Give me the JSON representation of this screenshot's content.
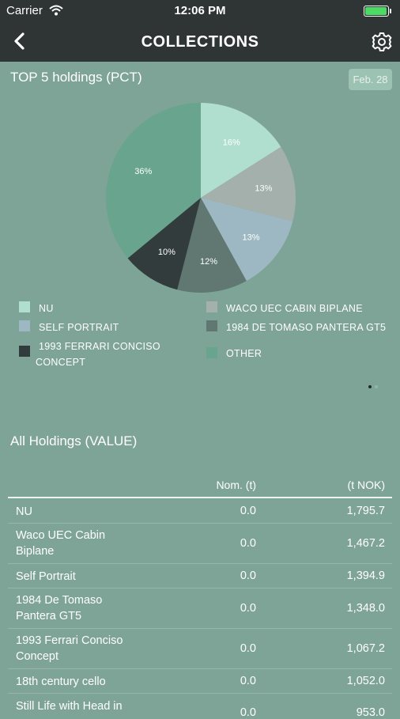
{
  "status": {
    "carrier": "Carrier",
    "time": "12:06 PM"
  },
  "nav": {
    "title": "COLLECTIONS"
  },
  "pie_section": {
    "title": "TOP 5 holdings (PCT)",
    "date": "Feb. 28"
  },
  "chart_data": {
    "type": "pie",
    "title": "TOP 5 holdings (PCT)",
    "slices": [
      {
        "label": "NU",
        "value": 16,
        "text": "16%",
        "color": "#b1dfcf"
      },
      {
        "label": "WACO UEC CABIN BIPLANE",
        "value": 13,
        "text": "13%",
        "color": "#a3b0ab"
      },
      {
        "label": "SELF PORTRAIT",
        "value": 13,
        "text": "13%",
        "color": "#9db8c2"
      },
      {
        "label": "1984 DE TOMASO PANTERA GT5",
        "value": 12,
        "text": "12%",
        "color": "#607772"
      },
      {
        "label": "1993 FERRARI CONCISO CONCEPT",
        "value": 10,
        "text": "10%",
        "color": "#323c3d"
      },
      {
        "label": "OTHER",
        "value": 36,
        "text": "36%",
        "color": "#69a48f"
      }
    ]
  },
  "legend": [
    {
      "label": "NU",
      "color": "#b1dfcf"
    },
    {
      "label": "WACO UEC CABIN BIPLANE",
      "color": "#a3b0ab"
    },
    {
      "label": "SELF PORTRAIT",
      "color": "#9db8c2"
    },
    {
      "label": "1984 DE TOMASO PANTERA GT5",
      "color": "#607772"
    },
    {
      "label": "1993 FERRARI CONCISO CONCEPT",
      "color": "#323c3d"
    },
    {
      "label": "OTHER",
      "color": "#69a48f"
    }
  ],
  "holdings": {
    "title": "All Holdings (VALUE)",
    "col_nom": "Nom. (t)",
    "col_value": "(t NOK)",
    "rows": [
      {
        "name": "NU",
        "nom": "0.0",
        "value": "1,795.7"
      },
      {
        "name": "Waco UEC Cabin Biplane",
        "nom": "0.0",
        "value": "1,467.2"
      },
      {
        "name": "Self Portrait",
        "nom": "0.0",
        "value": "1,394.9"
      },
      {
        "name": "1984 De Tomaso Pantera GT5",
        "nom": "0.0",
        "value": "1,348.0"
      },
      {
        "name": "1993 Ferrari Conciso Concept",
        "nom": "0.0",
        "value": "1,067.2"
      },
      {
        "name": "18th century cello",
        "nom": "0.0",
        "value": "1,052.0"
      },
      {
        "name": "Still Life with Head in",
        "nom": "0.0",
        "value": "953.0"
      }
    ]
  },
  "colors": {
    "background": "#7ea497",
    "bar": "#2f3534",
    "battery": "#4cd964"
  }
}
